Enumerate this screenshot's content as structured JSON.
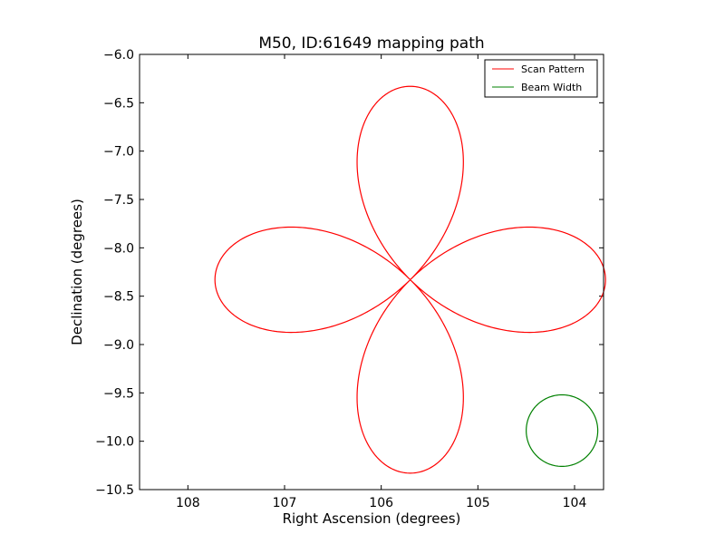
{
  "chart_data": {
    "type": "line",
    "title": "M50, ID:61649 mapping path",
    "xlabel": "Right Ascension (degrees)",
    "ylabel": "Declination (degrees)",
    "xlim": [
      108.5,
      103.7
    ],
    "ylim": [
      -10.5,
      -6.0
    ],
    "x_inverted": true,
    "xticks": [
      108,
      107,
      106,
      105,
      104
    ],
    "yticks": [
      -6.0,
      -6.5,
      -7.0,
      -7.5,
      -8.0,
      -8.5,
      -9.0,
      -9.5,
      -10.0,
      -10.5
    ],
    "xtick_labels": [
      "108",
      "107",
      "106",
      "105",
      "104"
    ],
    "ytick_labels": [
      "−6.0",
      "−6.5",
      "−7.0",
      "−7.5",
      "−8.0",
      "−8.5",
      "−9.0",
      "−9.5",
      "−10.0",
      "−10.5"
    ],
    "grid": false,
    "legend_position": "upper-right",
    "series": [
      {
        "name": "Scan Pattern",
        "color": "#ff0000",
        "shape": "four-petal rose",
        "center": [
          105.7,
          -8.33
        ],
        "radius_ra": 2.02,
        "radius_dec": 2.0,
        "start": [
          107.72,
          -8.35
        ]
      },
      {
        "name": "Beam Width",
        "color": "#008000",
        "shape": "circle",
        "center": [
          104.13,
          -9.89
        ],
        "radius_ra": 0.37,
        "radius_dec": 0.37
      }
    ]
  }
}
